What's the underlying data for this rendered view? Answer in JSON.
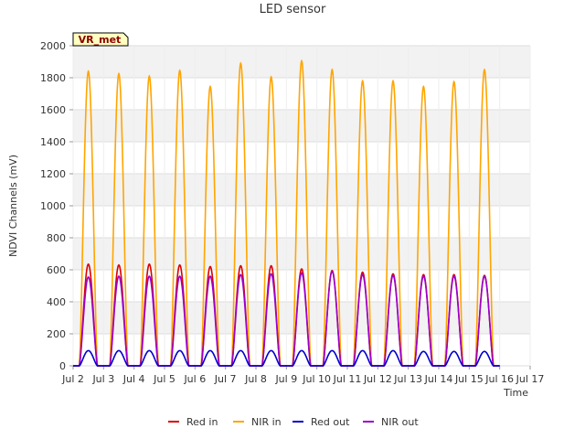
{
  "chart_data": {
    "type": "line",
    "title": "LED sensor",
    "xlabel": "Time",
    "ylabel": "NDVI Channels (mV)",
    "badge": "VR_met",
    "xlim": [
      2,
      17
    ],
    "ylim": [
      0,
      2000
    ],
    "yticks": [
      0,
      200,
      400,
      600,
      800,
      1000,
      1200,
      1400,
      1600,
      1800,
      2000
    ],
    "xticks": [
      {
        "v": 2,
        "label": "Jul 2"
      },
      {
        "v": 3,
        "label": "Jul 3"
      },
      {
        "v": 4,
        "label": "Jul 4"
      },
      {
        "v": 5,
        "label": "Jul 5"
      },
      {
        "v": 6,
        "label": "Jul 6"
      },
      {
        "v": 7,
        "label": "Jul 7"
      },
      {
        "v": 8,
        "label": "Jul 8"
      },
      {
        "v": 9,
        "label": "Jul 9"
      },
      {
        "v": 10,
        "label": "Jul 10"
      },
      {
        "v": 11,
        "label": "Jul 11"
      },
      {
        "v": 12,
        "label": "Jul 12"
      },
      {
        "v": 13,
        "label": "Jul 13"
      },
      {
        "v": 14,
        "label": "Jul 14"
      },
      {
        "v": 15,
        "label": "Jul 15"
      },
      {
        "v": 16,
        "label": "Jul 16"
      },
      {
        "v": 17,
        "label": "Jul 17"
      }
    ],
    "grid": true,
    "legend_position": "bottom",
    "daily_peak_days": [
      2.5,
      3.5,
      4.5,
      5.5,
      6.5,
      7.5,
      8.5,
      9.5,
      10.5,
      11.5,
      12.5,
      13.5,
      14.5,
      15.5
    ],
    "series": [
      {
        "name": "Red in",
        "color": "#dd0000",
        "daily_peaks": [
          635,
          630,
          635,
          630,
          620,
          625,
          625,
          605,
          595,
          585,
          575,
          570,
          570,
          565
        ]
      },
      {
        "name": "NIR in",
        "color": "#ffa500",
        "daily_peaks": [
          1840,
          1825,
          1810,
          1845,
          1745,
          1890,
          1805,
          1905,
          1850,
          1780,
          1780,
          1745,
          1775,
          1850
        ]
      },
      {
        "name": "Red out",
        "color": "#0000cc",
        "daily_peaks": [
          95,
          95,
          95,
          95,
          95,
          95,
          95,
          95,
          95,
          95,
          95,
          90,
          90,
          90
        ]
      },
      {
        "name": "NIR out",
        "color": "#9900cc",
        "daily_peaks": [
          555,
          560,
          560,
          560,
          560,
          570,
          575,
          580,
          590,
          570,
          565,
          560,
          560,
          560
        ]
      }
    ]
  }
}
